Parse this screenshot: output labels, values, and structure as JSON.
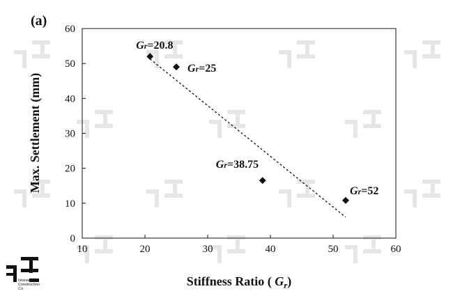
{
  "chart_data": {
    "type": "scatter",
    "panel_label": "(a)",
    "xlabel_prefix": "Stiffness Ratio ( ",
    "xlabel_symbol": "G",
    "xlabel_sub": "r",
    "xlabel_suffix": ")",
    "ylabel": "Max. Settlement (mm)",
    "xlim": [
      10,
      60
    ],
    "ylim": [
      0,
      60
    ],
    "xticks": [
      10,
      20,
      30,
      40,
      50,
      60
    ],
    "yticks": [
      0,
      10,
      20,
      30,
      40,
      50,
      60
    ],
    "grid": false,
    "points": [
      {
        "x": 20.8,
        "y": 52.0,
        "label_g": "G",
        "label_r": "r",
        "label_val": "=20.8"
      },
      {
        "x": 25.0,
        "y": 49.0,
        "label_g": "G",
        "label_r": "r",
        "label_val": "=25"
      },
      {
        "x": 38.75,
        "y": 16.5,
        "label_g": "G",
        "label_r": "r",
        "label_val": "=38.75"
      },
      {
        "x": 52.0,
        "y": 10.8,
        "label_g": "G",
        "label_r": "r",
        "label_val": "=52"
      }
    ],
    "trendline": {
      "style": "dashed",
      "x": [
        20.8,
        52.0
      ],
      "y": [
        51.3,
        6.0
      ]
    }
  },
  "watermark": {
    "company_lines": [
      "Istanaceh",
      "Construction",
      "Co."
    ]
  }
}
